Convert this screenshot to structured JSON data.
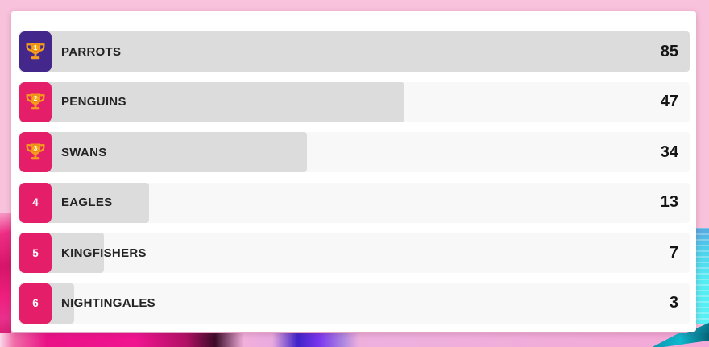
{
  "colors": {
    "badge_first": "#44278b",
    "badge_default": "#e41e68",
    "trophy_gold": "#f59c1e",
    "trophy_circle": "#fba819",
    "trophy_circle_ring": "#e18211",
    "bar_fill": "#dcdcdc",
    "bar_track": "#f8f8f8",
    "card": "#ffffff",
    "backdrop_pink": "#f9c2dc",
    "backdrop_cyan": "#55ecf2",
    "backdrop_magenta": "#ee1a86",
    "text_dark": "#242424"
  },
  "chart_data": {
    "type": "bar",
    "orientation": "horizontal",
    "title": "",
    "categories": [
      "PARROTS",
      "PENGUINS",
      "SWANS",
      "EAGLES",
      "KINGFISHERS",
      "NIGHTINGALES"
    ],
    "values": [
      85,
      47,
      34,
      13,
      7,
      3
    ],
    "xlim": [
      0,
      85
    ],
    "legend": false,
    "grid": false,
    "annotations": "rank badges 1-6 at left of each bar; gold trophy icon with rank number for top 3; score value right-aligned in each row"
  },
  "leaderboard": {
    "rows": [
      {
        "rank": "1",
        "name": "PARROTS",
        "score": "85",
        "icon": "trophy"
      },
      {
        "rank": "2",
        "name": "PENGUINS",
        "score": "47",
        "icon": "trophy"
      },
      {
        "rank": "3",
        "name": "SWANS",
        "score": "34",
        "icon": "trophy"
      },
      {
        "rank": "4",
        "name": "EAGLES",
        "score": "13",
        "icon": "number"
      },
      {
        "rank": "5",
        "name": "KINGFISHERS",
        "score": "7",
        "icon": "number"
      },
      {
        "rank": "6",
        "name": "NIGHTINGALES",
        "score": "3",
        "icon": "number"
      }
    ]
  }
}
